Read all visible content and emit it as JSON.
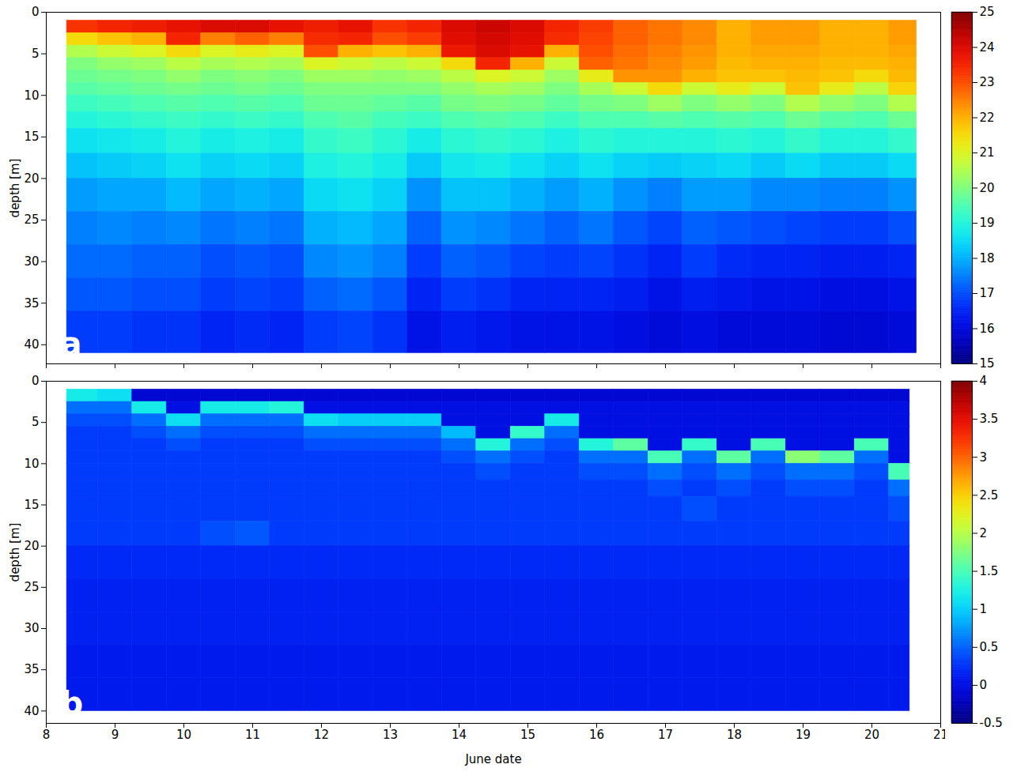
{
  "chart_data": [
    {
      "type": "heatmap",
      "panel_label": "a",
      "y_label": "depth [m]",
      "xlim": [
        8,
        21
      ],
      "xticks": [
        8,
        9,
        10,
        11,
        12,
        13,
        14,
        15,
        16,
        17,
        18,
        19,
        20,
        21
      ],
      "ylim": [
        0,
        42.3
      ],
      "yticks": [
        0,
        5,
        10,
        15,
        20,
        25,
        30,
        35,
        40
      ],
      "tick_labels": "y",
      "x_edges": [
        8.3,
        8.75,
        9.25,
        9.75,
        10.25,
        10.75,
        11.25,
        11.75,
        12.25,
        12.75,
        13.25,
        13.75,
        14.25,
        14.75,
        15.25,
        15.75,
        16.25,
        16.75,
        17.25,
        17.75,
        18.25,
        18.75,
        19.25,
        19.75,
        20.25,
        20.65
      ],
      "depth_edges": [
        1,
        2.5,
        4,
        5.5,
        7,
        8.5,
        10,
        12,
        14,
        17,
        20,
        24,
        28,
        32,
        36,
        41
      ],
      "cells": [
        [
          23.3,
          23.5,
          23.6,
          23.8,
          24,
          24,
          23.8,
          23.6,
          23.8,
          23.3,
          23.5,
          24,
          24.2,
          24,
          23.5,
          23.2,
          22.8,
          22.6,
          22.4,
          22,
          22.2,
          22.2,
          22,
          22,
          22.2
        ],
        [
          21.5,
          21.8,
          22,
          23.5,
          22.5,
          22.8,
          22.5,
          23.4,
          23.5,
          23,
          23.2,
          23.9,
          24.1,
          23.9,
          23.4,
          23.1,
          22.8,
          22.6,
          22.4,
          22,
          22.2,
          22.2,
          22,
          22,
          22.2
        ],
        [
          20.5,
          20.8,
          21,
          21.5,
          21,
          21.2,
          21,
          23,
          22,
          21.8,
          22,
          23.7,
          24,
          23.8,
          22,
          23,
          22.7,
          22.5,
          22.3,
          22,
          22.1,
          22.1,
          22,
          22,
          22.1
        ],
        [
          20,
          20.2,
          20.3,
          20.6,
          20.4,
          20.5,
          20.4,
          21,
          20.8,
          20.6,
          20.8,
          21.5,
          23.5,
          22,
          20.8,
          22.8,
          22.6,
          22.4,
          22.2,
          21.9,
          22,
          22,
          21.9,
          21.9,
          22
        ],
        [
          19.8,
          19.9,
          20,
          20.2,
          20,
          20.1,
          20,
          20.3,
          20.3,
          20.2,
          20.3,
          20.6,
          21,
          20.8,
          20.3,
          21.2,
          22.3,
          22.3,
          22,
          21.8,
          21.8,
          21.9,
          21.8,
          21.5,
          21.9
        ],
        [
          19.6,
          19.7,
          19.8,
          19.9,
          19.8,
          19.9,
          19.8,
          20,
          20,
          20,
          20,
          20.2,
          20.4,
          20.3,
          20,
          20.4,
          20.8,
          21.5,
          20.8,
          21.2,
          20.8,
          21.8,
          21.2,
          20.6,
          21.6
        ],
        [
          19.3,
          19.4,
          19.5,
          19.6,
          19.5,
          19.6,
          19.5,
          19.8,
          19.8,
          19.7,
          19.6,
          19.9,
          20,
          19.9,
          19.7,
          19.9,
          20,
          20.3,
          20,
          20.2,
          20,
          20.5,
          20.2,
          20,
          20.5
        ],
        [
          19,
          19.1,
          19.2,
          19.3,
          19.2,
          19.3,
          19.2,
          19.5,
          19.6,
          19.4,
          19.3,
          19.5,
          19.6,
          19.5,
          19.3,
          19.5,
          19.5,
          19.6,
          19.5,
          19.6,
          19.5,
          19.8,
          19.6,
          19.5,
          19.8
        ],
        [
          18.6,
          18.7,
          18.8,
          19,
          18.8,
          18.9,
          18.8,
          19.2,
          19.3,
          19.1,
          18.8,
          19.1,
          19.2,
          19.1,
          18.9,
          19.1,
          19,
          19,
          19,
          19.1,
          19,
          19.2,
          19,
          19,
          19.2
        ],
        [
          18.2,
          18.3,
          18.4,
          18.6,
          18.4,
          18.5,
          18.4,
          18.9,
          19,
          18.8,
          18.3,
          18.7,
          18.8,
          18.6,
          18.4,
          18.6,
          18.4,
          18.3,
          18.4,
          18.5,
          18.3,
          18.5,
          18.3,
          18.3,
          18.5
        ],
        [
          17.8,
          17.9,
          17.9,
          18.1,
          17.9,
          18,
          17.9,
          18.5,
          18.6,
          18.4,
          17.7,
          18.2,
          18.2,
          18,
          17.8,
          18,
          17.7,
          17.5,
          17.8,
          17.8,
          17.6,
          17.6,
          17.5,
          17.5,
          17.7
        ],
        [
          17.5,
          17.6,
          17.5,
          17.6,
          17.4,
          17.5,
          17.4,
          18,
          18.1,
          17.9,
          17.2,
          17.7,
          17.6,
          17.4,
          17.2,
          17.4,
          17.1,
          16.9,
          17.2,
          17.1,
          17,
          16.9,
          16.8,
          16.8,
          17
        ],
        [
          17.3,
          17.3,
          17.2,
          17.2,
          17,
          17.1,
          17,
          17.6,
          17.7,
          17.5,
          16.8,
          17.2,
          17.1,
          16.9,
          16.8,
          16.9,
          16.7,
          16.5,
          16.8,
          16.6,
          16.5,
          16.5,
          16.4,
          16.4,
          16.5
        ],
        [
          17.1,
          17.1,
          17,
          17,
          16.8,
          16.9,
          16.8,
          17.2,
          17.3,
          17.1,
          16.5,
          16.8,
          16.7,
          16.5,
          16.5,
          16.5,
          16.4,
          16.2,
          16.4,
          16.3,
          16.2,
          16.2,
          16.1,
          16.1,
          16.2
        ],
        [
          16.8,
          16.8,
          16.7,
          16.7,
          16.5,
          16.6,
          16.5,
          16.8,
          16.9,
          16.7,
          16.2,
          16.4,
          16.3,
          16.2,
          16.2,
          16.2,
          16.1,
          16,
          16.1,
          16,
          16,
          16,
          15.9,
          15.9,
          16
        ]
      ],
      "colorbar_lim": [
        15,
        25
      ],
      "colorbar_ticks": [
        15,
        16,
        17,
        18,
        19,
        20,
        21,
        22,
        23,
        24,
        25
      ]
    },
    {
      "type": "heatmap",
      "panel_label": "b",
      "x_label": "June date",
      "y_label": "depth [m]",
      "xlim": [
        8,
        21
      ],
      "xticks": [
        8,
        9,
        10,
        11,
        12,
        13,
        14,
        15,
        16,
        17,
        18,
        19,
        20,
        21
      ],
      "ylim": [
        0,
        41.5
      ],
      "yticks": [
        0,
        5,
        10,
        15,
        20,
        25,
        30,
        35,
        40
      ],
      "x_edges": [
        8.3,
        8.75,
        9.25,
        9.75,
        10.25,
        10.75,
        11.25,
        11.75,
        12.25,
        12.75,
        13.25,
        13.75,
        14.25,
        14.75,
        15.25,
        15.75,
        16.25,
        16.75,
        17.25,
        17.75,
        18.25,
        18.75,
        19.25,
        19.75,
        20.25,
        20.55
      ],
      "depth_edges": [
        1,
        2.5,
        4,
        5.5,
        7,
        8.5,
        10,
        12,
        14,
        17,
        20,
        24,
        28,
        32,
        36,
        40
      ],
      "cells": [
        [
          1.2,
          1.1,
          -0.1,
          -0.1,
          -0.1,
          -0.1,
          -0.1,
          -0.1,
          -0.1,
          -0.1,
          -0.1,
          -0.1,
          -0.1,
          -0.1,
          -0.1,
          -0.1,
          -0.1,
          -0.1,
          -0.1,
          -0.1,
          -0.1,
          -0.1,
          -0.1,
          -0.1,
          -0.1
        ],
        [
          0.55,
          0.55,
          1.2,
          0,
          1.2,
          1.2,
          1.3,
          0,
          0,
          0,
          0,
          0,
          0,
          0,
          0,
          0,
          0,
          0,
          0,
          0,
          0,
          0,
          0,
          0,
          0
        ],
        [
          0.4,
          0.4,
          0.55,
          1.1,
          0.55,
          0.55,
          0.55,
          1.1,
          1,
          1,
          1,
          0,
          0,
          0,
          1.2,
          0,
          0,
          0,
          0,
          0,
          0,
          0,
          0,
          0,
          0
        ],
        [
          0.3,
          0.3,
          0.4,
          0.55,
          0.4,
          0.4,
          0.4,
          0.55,
          0.55,
          0.55,
          0.55,
          0.9,
          0,
          1.4,
          0.55,
          0,
          0,
          0,
          0,
          0,
          0,
          0,
          0,
          0,
          0
        ],
        [
          0.3,
          0.3,
          0.3,
          0.4,
          0.3,
          0.3,
          0.3,
          0.4,
          0.4,
          0.4,
          0.4,
          0.55,
          1.3,
          0.55,
          0.4,
          1.3,
          1.6,
          0,
          1.4,
          0,
          1.5,
          0,
          0,
          1.5,
          0
        ],
        [
          0.3,
          0.3,
          0.3,
          0.3,
          0.3,
          0.3,
          0.3,
          0.3,
          0.3,
          0.3,
          0.3,
          0.4,
          0.55,
          0.4,
          0.3,
          0.55,
          0.55,
          1.5,
          0.55,
          1.6,
          0.55,
          1.8,
          1.6,
          0.55,
          0
        ],
        [
          0.3,
          0.3,
          0.3,
          0.3,
          0.3,
          0.3,
          0.3,
          0.3,
          0.3,
          0.3,
          0.3,
          0.3,
          0.4,
          0.3,
          0.3,
          0.4,
          0.4,
          0.55,
          0.4,
          0.55,
          0.4,
          0.55,
          0.55,
          0.4,
          1.5
        ],
        [
          0.3,
          0.3,
          0.3,
          0.3,
          0.3,
          0.3,
          0.3,
          0.3,
          0.3,
          0.3,
          0.3,
          0.3,
          0.3,
          0.3,
          0.3,
          0.3,
          0.3,
          0.4,
          0.3,
          0.4,
          0.3,
          0.4,
          0.4,
          0.3,
          0.55
        ],
        [
          0.3,
          0.3,
          0.3,
          0.3,
          0.3,
          0.3,
          0.3,
          0.3,
          0.3,
          0.3,
          0.3,
          0.3,
          0.3,
          0.3,
          0.3,
          0.3,
          0.3,
          0.3,
          0.4,
          0.3,
          0.3,
          0.3,
          0.3,
          0.3,
          0.4
        ],
        [
          0.3,
          0.3,
          0.3,
          0.3,
          0.4,
          0.45,
          0.3,
          0.3,
          0.3,
          0.3,
          0.3,
          0.3,
          0.3,
          0.3,
          0.3,
          0.3,
          0.3,
          0.3,
          0.3,
          0.3,
          0.3,
          0.3,
          0.3,
          0.3,
          0.3
        ],
        [
          0.2,
          0.2,
          0.2,
          0.2,
          0.2,
          0.2,
          0.2,
          0.2,
          0.2,
          0.2,
          0.2,
          0.2,
          0.2,
          0.2,
          0.2,
          0.2,
          0.2,
          0.2,
          0.2,
          0.2,
          0.2,
          0.2,
          0.2,
          0.2,
          0.2
        ],
        [
          0.15,
          0.15,
          0.15,
          0.15,
          0.15,
          0.15,
          0.15,
          0.15,
          0.15,
          0.15,
          0.15,
          0.15,
          0.15,
          0.15,
          0.15,
          0.15,
          0.15,
          0.15,
          0.15,
          0.15,
          0.15,
          0.15,
          0.15,
          0.15,
          0.15
        ],
        [
          0.15,
          0.15,
          0.15,
          0.15,
          0.15,
          0.15,
          0.15,
          0.15,
          0.15,
          0.15,
          0.15,
          0.15,
          0.15,
          0.15,
          0.15,
          0.15,
          0.15,
          0.15,
          0.15,
          0.15,
          0.15,
          0.15,
          0.15,
          0.15,
          0.15
        ],
        [
          0.1,
          0.1,
          0.1,
          0.1,
          0.1,
          0.1,
          0.1,
          0.1,
          0.1,
          0.1,
          0.1,
          0.1,
          0.1,
          0.1,
          0.1,
          0.1,
          0.1,
          0.1,
          0.1,
          0.1,
          0.1,
          0.1,
          0.1,
          0.1,
          0.1
        ],
        [
          0.1,
          0.1,
          0.1,
          0.1,
          0.1,
          0.1,
          0.1,
          0.1,
          0.1,
          0.1,
          0.1,
          0.1,
          0.1,
          0.1,
          0.1,
          0.1,
          0.1,
          0.1,
          0.1,
          0.1,
          0.1,
          0.1,
          0.1,
          0.1,
          0.1
        ]
      ],
      "colorbar_lim": [
        -0.5,
        4
      ],
      "colorbar_ticks": [
        -0.5,
        0,
        0.5,
        1,
        1.5,
        2,
        2.5,
        3,
        3.5,
        4
      ]
    }
  ]
}
